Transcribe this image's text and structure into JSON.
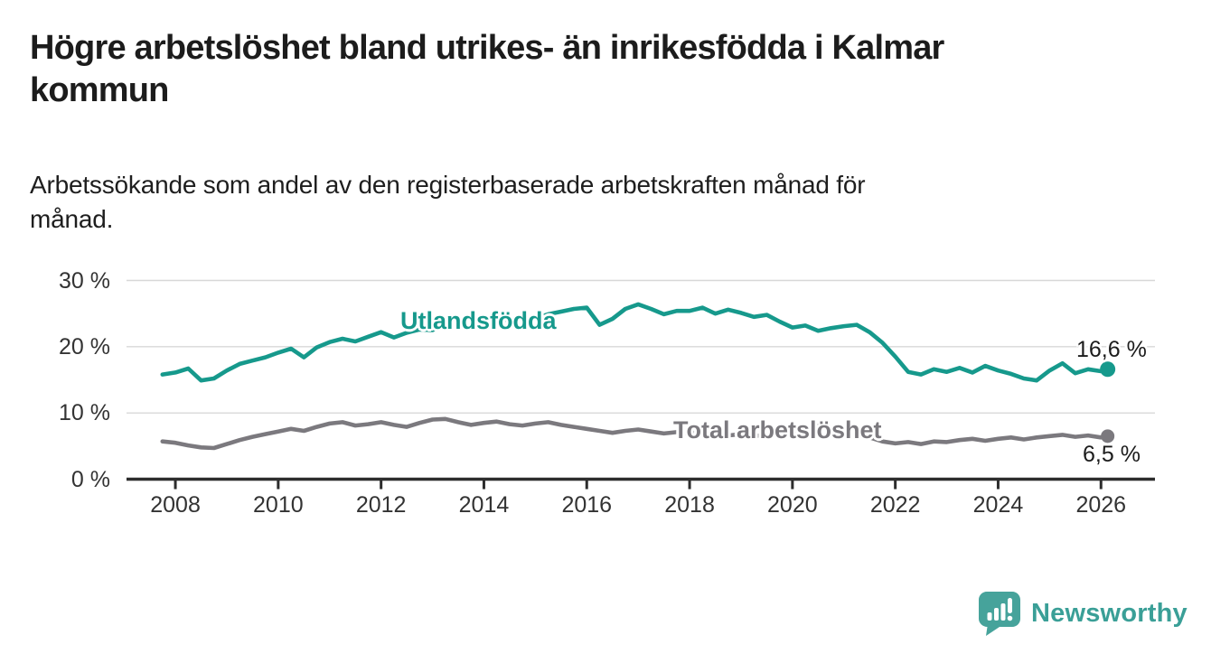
{
  "header": {
    "title": "Högre arbetslöshet bland utrikes- än inrikesfödda i Kalmar\nkommun",
    "subtitle": "Arbetssökande som andel av den registerbaserade arbetskraften månad för\nmånad."
  },
  "chart_data": {
    "type": "line",
    "title": "Högre arbetslöshet bland utrikes- än inrikesfödda i Kalmar kommun",
    "subtitle": "Arbetssökande som andel av den registerbaserade arbetskraften månad för månad.",
    "xlabel": "",
    "ylabel": "",
    "grid": "horizontal",
    "legend_position": "inline-labels",
    "xlim": [
      2007.05,
      2027.05
    ],
    "ylim": [
      0,
      30
    ],
    "x_ticks": [
      2008,
      2010,
      2012,
      2014,
      2016,
      2018,
      2020,
      2022,
      2024,
      2026
    ],
    "y_ticks": [
      0,
      10,
      20,
      30
    ],
    "y_tick_labels": [
      "0 %",
      "10 %",
      "20 %",
      "30 %"
    ],
    "x": [
      2007.75,
      2008,
      2008.25,
      2008.5,
      2008.75,
      2009,
      2009.25,
      2009.5,
      2009.75,
      2010,
      2010.25,
      2010.5,
      2010.75,
      2011,
      2011.25,
      2011.5,
      2011.75,
      2012,
      2012.25,
      2012.5,
      2012.75,
      2013,
      2013.25,
      2013.5,
      2013.75,
      2014,
      2014.25,
      2014.5,
      2014.75,
      2015,
      2015.25,
      2015.5,
      2015.75,
      2016,
      2016.25,
      2016.5,
      2016.75,
      2017,
      2017.25,
      2017.5,
      2017.75,
      2018,
      2018.25,
      2018.5,
      2018.75,
      2019,
      2019.25,
      2019.5,
      2019.75,
      2020,
      2020.25,
      2020.5,
      2020.75,
      2021,
      2021.25,
      2021.5,
      2021.75,
      2022,
      2022.25,
      2022.5,
      2022.75,
      2023,
      2023.25,
      2023.5,
      2023.75,
      2024,
      2024.25,
      2024.5,
      2024.75,
      2025,
      2025.25,
      2025.5,
      2025.75,
      2026,
      2026.13
    ],
    "series": [
      {
        "name": "Utlandsfödda",
        "color": "#16998c",
        "end_label": "16,6 %",
        "end_value": 16.6,
        "values": [
          15.8,
          16.1,
          16.7,
          14.9,
          15.2,
          16.4,
          17.4,
          17.9,
          18.4,
          19.1,
          19.7,
          18.4,
          19.9,
          20.7,
          21.2,
          20.8,
          21.5,
          22.2,
          21.4,
          22.1,
          22.6,
          22.5,
          23.5,
          24.3,
          23.7,
          24.2,
          24.7,
          23.8,
          24.4,
          24.3,
          24.9,
          25.3,
          25.7,
          25.9,
          23.3,
          24.2,
          25.7,
          26.4,
          25.7,
          24.9,
          25.4,
          25.4,
          25.9,
          25.0,
          25.6,
          25.1,
          24.5,
          24.8,
          23.8,
          22.9,
          23.2,
          22.4,
          22.8,
          23.1,
          23.3,
          22.2,
          20.6,
          18.5,
          16.2,
          15.8,
          16.6,
          16.2,
          16.8,
          16.1,
          17.1,
          16.4,
          15.9,
          15.2,
          14.9,
          16.4,
          17.5,
          16.0,
          16.6,
          16.3,
          16.6
        ]
      },
      {
        "name": "Total arbetslöshet",
        "color": "#7b797e",
        "end_label": "6,5 %",
        "end_value": 6.5,
        "values": [
          5.7,
          5.5,
          5.1,
          4.8,
          4.7,
          5.3,
          5.9,
          6.4,
          6.8,
          7.2,
          7.6,
          7.3,
          7.9,
          8.4,
          8.6,
          8.1,
          8.3,
          8.6,
          8.2,
          7.9,
          8.5,
          9.0,
          9.1,
          8.6,
          8.2,
          8.5,
          8.7,
          8.3,
          8.1,
          8.4,
          8.6,
          8.2,
          7.9,
          7.6,
          7.3,
          7.0,
          7.3,
          7.5,
          7.2,
          6.9,
          7.1,
          6.9,
          7.2,
          6.8,
          6.6,
          6.8,
          6.5,
          6.7,
          6.9,
          7.2,
          7.9,
          8.1,
          7.7,
          7.3,
          6.9,
          6.3,
          5.7,
          5.4,
          5.6,
          5.3,
          5.7,
          5.6,
          5.9,
          6.1,
          5.8,
          6.1,
          6.3,
          6.0,
          6.3,
          6.5,
          6.7,
          6.4,
          6.6,
          6.3,
          6.5
        ]
      }
    ],
    "colors": {
      "grid": "#d8d8d8",
      "axis": "#2d2d2d",
      "tick_text": "#333333",
      "value_label_text": "#1c1c1c"
    }
  },
  "branding": {
    "logo_text": "Newsworthy",
    "logo_icon": "bar-chart-speech-bubble-icon",
    "brand_color": "#3a9f97"
  }
}
